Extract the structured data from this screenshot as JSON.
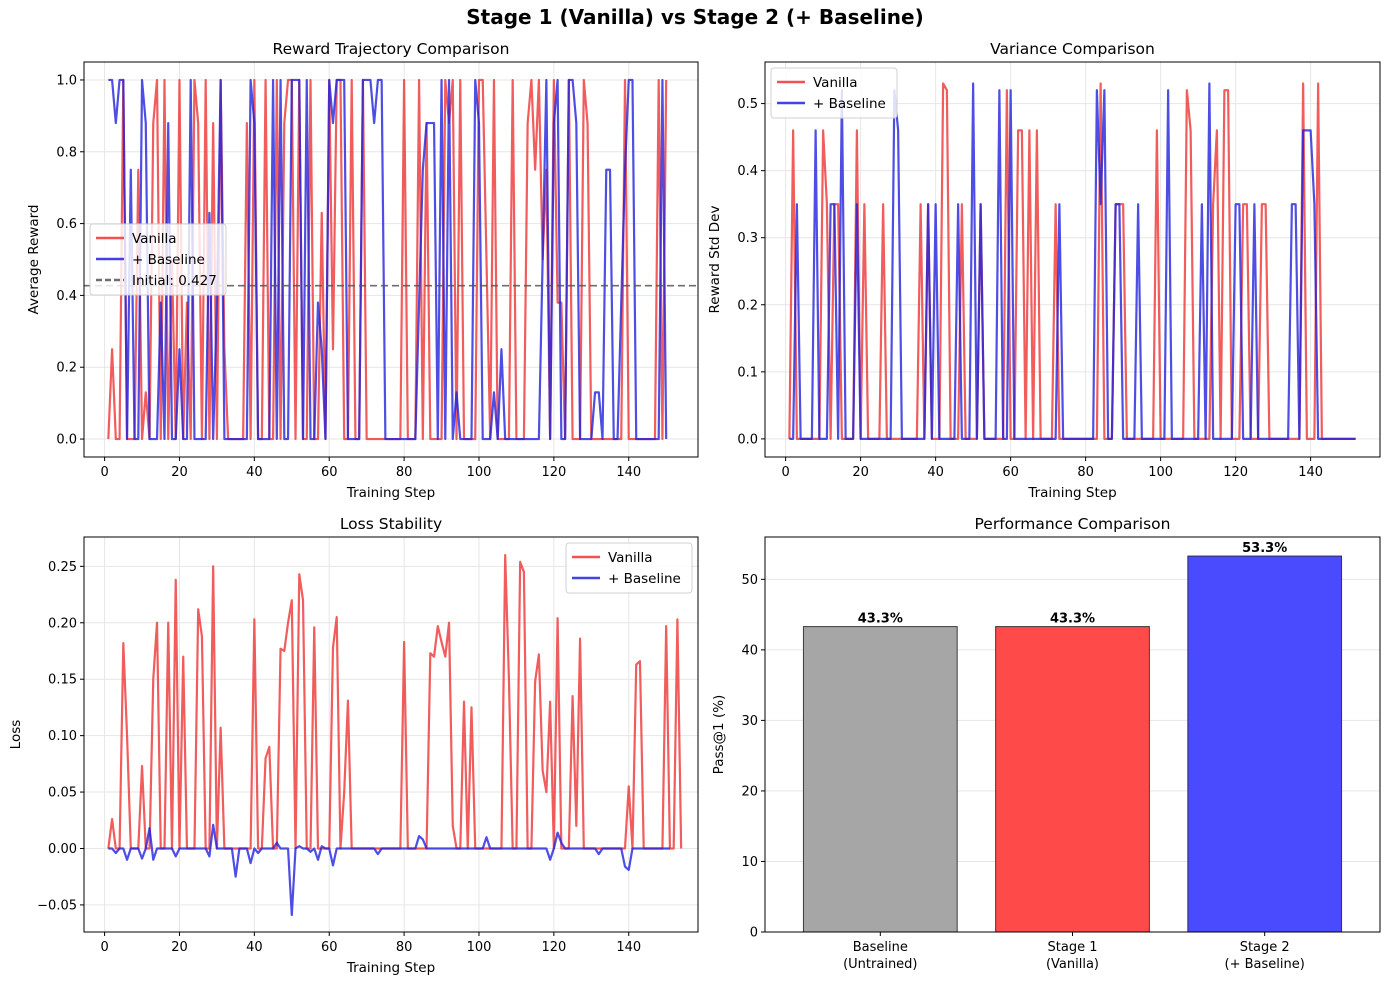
{
  "suptitle": "Stage 1 (Vanilla) vs Stage 2 (+ Baseline)",
  "colors": {
    "vanilla": "#ee3333",
    "baseline_line": "#2222dd",
    "initial_line": "#555555",
    "bar_gray": "#a6a6a6",
    "bar_red": "#ff4a4a",
    "bar_blue": "#4a4aff",
    "grid": "#e6e6e6"
  },
  "chart_data": [
    {
      "type": "line",
      "title": "Reward Trajectory Comparison",
      "xlabel": "Training Step",
      "ylabel": "Average Reward",
      "xlim": [
        -5.5,
        158.5
      ],
      "ylim": [
        -0.05,
        1.05
      ],
      "xticks": [
        0,
        20,
        40,
        60,
        80,
        100,
        120,
        140
      ],
      "yticks": [
        0.0,
        0.2,
        0.4,
        0.6,
        0.8,
        1.0
      ],
      "ytick_decimals": 1,
      "grid": true,
      "legend": "center-left",
      "hline": {
        "y": 0.427,
        "label": "Initial: 0.427"
      },
      "series": [
        {
          "name": "Vanilla",
          "x_start": 1,
          "values": [
            0.0,
            0.25,
            0.0,
            0.0,
            1.0,
            0.0,
            0.0,
            0.0,
            0.75,
            0.0,
            0.13,
            0.0,
            0.88,
            1.0,
            0.0,
            1.0,
            0.0,
            0.5,
            0.0,
            1.0,
            0.0,
            0.38,
            0.0,
            1.0,
            0.88,
            0.0,
            1.0,
            0.0,
            0.88,
            0.0,
            1.0,
            0.25,
            0.0,
            0.0,
            0.0,
            0.0,
            0.0,
            0.88,
            0.0,
            1.0,
            0.0,
            0.0,
            1.0,
            0.0,
            0.0,
            1.0,
            0.0,
            0.88,
            1.0,
            1.0,
            0.0,
            1.0,
            0.0,
            0.0,
            1.0,
            0.0,
            0.0,
            0.63,
            0.0,
            1.0,
            0.25,
            1.0,
            1.0,
            0.0,
            0.0,
            1.0,
            0.0,
            0.0,
            1.0,
            0.0,
            0.0,
            0.0,
            0.0,
            0.0,
            0.0,
            0.0,
            0.0,
            0.0,
            0.0,
            1.0,
            0.0,
            0.0,
            0.0,
            1.0,
            0.0,
            0.88,
            0.0,
            0.0,
            0.0,
            0.0,
            1.0,
            0.88,
            1.0,
            0.0,
            1.0,
            0.0,
            0.0,
            0.0,
            0.0,
            1.0,
            1.0,
            0.5,
            0.0,
            1.0,
            0.0,
            0.0,
            0.0,
            0.0,
            1.0,
            0.0,
            0.0,
            0.0,
            0.88,
            1.0,
            0.75,
            1.0,
            0.5,
            0.75,
            0.0,
            1.0,
            0.38,
            0.38,
            0.0,
            1.0,
            0.0,
            0.0,
            0.0,
            1.0,
            0.88,
            0.0,
            0.0,
            0.0,
            0.0,
            0.0,
            0.0,
            0.0,
            0.0,
            0.0,
            1.0,
            0.0,
            0.0,
            0.0,
            0.0,
            0.0,
            0.0,
            0.0,
            0.0,
            1.0,
            0.0,
            1.0
          ]
        },
        {
          "name": "+ Baseline",
          "x_start": 1,
          "values": [
            1.0,
            1.0,
            0.88,
            1.0,
            1.0,
            0.0,
            0.75,
            0.0,
            0.0,
            1.0,
            0.88,
            0.0,
            0.0,
            0.0,
            0.38,
            0.0,
            0.88,
            0.0,
            0.0,
            0.25,
            0.0,
            0.0,
            1.0,
            0.0,
            0.0,
            0.0,
            0.0,
            0.63,
            0.0,
            0.38,
            1.0,
            0.0,
            0.0,
            0.0,
            0.0,
            0.0,
            0.0,
            0.0,
            1.0,
            0.88,
            0.0,
            0.0,
            0.0,
            0.0,
            1.0,
            0.0,
            1.0,
            0.0,
            0.0,
            1.0,
            1.0,
            1.0,
            0.0,
            1.0,
            0.0,
            0.0,
            0.38,
            0.25,
            0.0,
            1.0,
            0.88,
            1.0,
            1.0,
            1.0,
            0.0,
            0.0,
            0.0,
            0.0,
            1.0,
            1.0,
            1.0,
            0.88,
            1.0,
            1.0,
            0.0,
            0.0,
            0.0,
            0.0,
            0.0,
            0.0,
            0.0,
            0.0,
            0.0,
            0.38,
            0.75,
            0.88,
            0.88,
            0.88,
            0.0,
            1.0,
            0.0,
            1.0,
            0.0,
            0.13,
            0.0,
            0.0,
            0.0,
            0.0,
            1.0,
            0.88,
            0.0,
            0.0,
            0.0,
            0.13,
            0.0,
            0.25,
            0.0,
            0.0,
            0.0,
            0.0,
            0.0,
            0.0,
            0.0,
            0.0,
            0.0,
            0.0,
            0.5,
            1.0,
            0.0,
            0.88,
            1.0,
            0.0,
            0.0,
            1.0,
            1.0,
            0.88,
            0.0,
            0.0,
            0.0,
            0.0,
            0.13,
            0.13,
            0.0,
            0.75,
            0.75,
            0.0,
            0.0,
            0.38,
            0.75,
            1.0,
            1.0,
            0.0,
            0.0,
            0.0,
            0.0,
            0.0,
            0.0,
            0.0,
            1.0,
            0.0
          ]
        }
      ]
    },
    {
      "type": "line",
      "title": "Variance Comparison",
      "xlabel": "Training Step",
      "ylabel": "Reward Std Dev",
      "xlim": [
        -5.5,
        158.5
      ],
      "ylim": [
        -0.027,
        0.562
      ],
      "xticks": [
        0,
        20,
        40,
        60,
        80,
        100,
        120,
        140
      ],
      "yticks": [
        0.0,
        0.1,
        0.2,
        0.3,
        0.4,
        0.5
      ],
      "ytick_decimals": 1,
      "grid": true,
      "legend": "top-left",
      "series": [
        {
          "name": "Vanilla",
          "x_start": 1,
          "values": [
            0.0,
            0.46,
            0.0,
            0.0,
            0.0,
            0.0,
            0.0,
            0.0,
            0.0,
            0.46,
            0.35,
            0.0,
            0.35,
            0.35,
            0.0,
            0.0,
            0.0,
            0.0,
            0.46,
            0.0,
            0.35,
            0.0,
            0.0,
            0.0,
            0.0,
            0.35,
            0.0,
            0.0,
            0.0,
            0.0,
            0.0,
            0.0,
            0.0,
            0.0,
            0.0,
            0.35,
            0.0,
            0.35,
            0.0,
            0.0,
            0.0,
            0.53,
            0.52,
            0.0,
            0.0,
            0.0,
            0.35,
            0.0,
            0.0,
            0.0,
            0.0,
            0.35,
            0.0,
            0.0,
            0.0,
            0.0,
            0.0,
            0.0,
            0.52,
            0.0,
            0.0,
            0.46,
            0.46,
            0.0,
            0.46,
            0.0,
            0.46,
            0.0,
            0.0,
            0.0,
            0.0,
            0.35,
            0.0,
            0.0,
            0.0,
            0.0,
            0.0,
            0.0,
            0.0,
            0.0,
            0.0,
            0.0,
            0.0,
            0.53,
            0.0,
            0.0,
            0.0,
            0.35,
            0.35,
            0.35,
            0.0,
            0.0,
            0.0,
            0.0,
            0.0,
            0.0,
            0.0,
            0.0,
            0.46,
            0.0,
            0.0,
            0.0,
            0.0,
            0.0,
            0.0,
            0.0,
            0.52,
            0.46,
            0.0,
            0.0,
            0.0,
            0.0,
            0.0,
            0.35,
            0.46,
            0.0,
            0.52,
            0.52,
            0.0,
            0.0,
            0.0,
            0.35,
            0.35,
            0.0,
            0.0,
            0.0,
            0.35,
            0.35,
            0.0,
            0.0,
            0.0,
            0.0,
            0.0,
            0.0,
            0.0,
            0.0,
            0.0,
            0.53,
            0.0,
            0.0,
            0.0,
            0.53,
            0.0,
            0.0,
            0.0,
            0.0,
            0.0,
            0.0,
            0.0,
            0.0,
            0.0,
            0.0
          ]
        },
        {
          "name": "+ Baseline",
          "x_start": 1,
          "values": [
            0.0,
            0.0,
            0.35,
            0.0,
            0.0,
            0.0,
            0.0,
            0.46,
            0.0,
            0.0,
            0.0,
            0.35,
            0.35,
            0.0,
            0.52,
            0.0,
            0.0,
            0.0,
            0.35,
            0.0,
            0.0,
            0.0,
            0.0,
            0.0,
            0.0,
            0.0,
            0.0,
            0.0,
            0.52,
            0.46,
            0.0,
            0.0,
            0.0,
            0.0,
            0.0,
            0.0,
            0.0,
            0.35,
            0.0,
            0.35,
            0.0,
            0.0,
            0.0,
            0.0,
            0.0,
            0.35,
            0.0,
            0.0,
            0.0,
            0.53,
            0.0,
            0.35,
            0.0,
            0.0,
            0.0,
            0.0,
            0.52,
            0.0,
            0.0,
            0.52,
            0.0,
            0.0,
            0.0,
            0.0,
            0.0,
            0.0,
            0.0,
            0.0,
            0.0,
            0.0,
            0.0,
            0.0,
            0.35,
            0.0,
            0.0,
            0.0,
            0.0,
            0.0,
            0.0,
            0.0,
            0.0,
            0.0,
            0.52,
            0.35,
            0.52,
            0.0,
            0.0,
            0.35,
            0.35,
            0.0,
            0.0,
            0.0,
            0.0,
            0.35,
            0.0,
            0.0,
            0.0,
            0.0,
            0.0,
            0.0,
            0.0,
            0.52,
            0.0,
            0.0,
            0.0,
            0.0,
            0.0,
            0.0,
            0.0,
            0.0,
            0.35,
            0.0,
            0.53,
            0.0,
            0.0,
            0.0,
            0.0,
            0.0,
            0.0,
            0.35,
            0.35,
            0.0,
            0.0,
            0.0,
            0.35,
            0.0,
            0.0,
            0.0,
            0.0,
            0.0,
            0.0,
            0.0,
            0.0,
            0.0,
            0.35,
            0.35,
            0.0,
            0.46,
            0.46,
            0.46,
            0.35,
            0.0,
            0.0,
            0.0,
            0.0,
            0.0,
            0.0,
            0.0,
            0.0,
            0.0,
            0.0,
            0.0
          ]
        }
      ]
    },
    {
      "type": "line",
      "title": "Loss Stability",
      "xlabel": "Training Step",
      "ylabel": "Loss",
      "xlim": [
        -5.5,
        158.5
      ],
      "ylim": [
        -0.074,
        0.276
      ],
      "xticks": [
        0,
        20,
        40,
        60,
        80,
        100,
        120,
        140
      ],
      "yticks": [
        -0.05,
        0.0,
        0.05,
        0.1,
        0.15,
        0.2,
        0.25
      ],
      "ytick_decimals": 2,
      "grid": true,
      "legend": "top-right",
      "series": [
        {
          "name": "Vanilla",
          "x_start": 1,
          "values": [
            0.0,
            0.026,
            0.0,
            0.0,
            0.182,
            0.1,
            0.0,
            0.0,
            0.0,
            0.073,
            0.0,
            0.0,
            0.15,
            0.2,
            0.0,
            0.0,
            0.2,
            0.0,
            0.238,
            0.0,
            0.17,
            0.0,
            0.0,
            0.0,
            0.212,
            0.188,
            0.0,
            0.0,
            0.25,
            0.0,
            0.107,
            0.0,
            0.0,
            0.0,
            0.0,
            0.0,
            0.0,
            0.0,
            0.0,
            0.203,
            0.0,
            0.0,
            0.08,
            0.09,
            0.0,
            0.0,
            0.177,
            0.175,
            0.2,
            0.22,
            0.0,
            0.243,
            0.22,
            0.0,
            0.0,
            0.196,
            0.0,
            0.0,
            0.0,
            0.0,
            0.178,
            0.205,
            0.0,
            0.05,
            0.131,
            0.0,
            0.0,
            0.0,
            0.0,
            0.0,
            0.0,
            0.0,
            0.0,
            0.0,
            0.0,
            0.0,
            0.0,
            0.0,
            0.0,
            0.183,
            0.0,
            0.0,
            0.0,
            0.0,
            0.0,
            0.0,
            0.173,
            0.17,
            0.197,
            0.183,
            0.17,
            0.2,
            0.02,
            0.0,
            0.0,
            0.13,
            0.0,
            0.125,
            0.0,
            0.0,
            0.0,
            0.0,
            0.0,
            0.0,
            0.0,
            0.0,
            0.26,
            0.15,
            0.0,
            0.0,
            0.254,
            0.245,
            0.0,
            0.0,
            0.148,
            0.172,
            0.069,
            0.05,
            0.13,
            0.0,
            0.204,
            0.0,
            0.0,
            0.0,
            0.135,
            0.02,
            0.186,
            0.0,
            0.0,
            0.0,
            0.0,
            0.0,
            0.0,
            0.0,
            0.0,
            0.0,
            0.0,
            0.0,
            0.0,
            0.055,
            0.0,
            0.163,
            0.166,
            0.0,
            0.0,
            0.0,
            0.0,
            0.0,
            0.0,
            0.197,
            0.0,
            0.0,
            0.203,
            0.0
          ]
        },
        {
          "name": "+ Baseline",
          "x_start": 1,
          "values": [
            0.0,
            0.0,
            -0.004,
            0.0,
            0.0,
            -0.01,
            0.0,
            0.0,
            0.0,
            -0.009,
            0.0,
            0.018,
            -0.01,
            0.0,
            0.0,
            0.0,
            0.0,
            0.0,
            -0.007,
            0.0,
            0.0,
            0.0,
            0.0,
            0.0,
            0.0,
            0.0,
            0.0,
            -0.007,
            0.021,
            0.0,
            0.0,
            0.0,
            0.0,
            0.0,
            -0.025,
            0.0,
            0.0,
            0.0,
            -0.013,
            0.0,
            -0.004,
            0.0,
            0.0,
            0.0,
            0.0,
            0.005,
            0.0,
            0.0,
            0.0,
            -0.059,
            0.0,
            0.002,
            0.0,
            0.0,
            -0.003,
            0.0,
            -0.01,
            0.002,
            0.0,
            0.0,
            -0.015,
            0.0,
            0.0,
            0.0,
            0.0,
            0.0,
            0.0,
            0.0,
            0.0,
            0.0,
            0.0,
            0.0,
            -0.005,
            0.0,
            0.0,
            0.0,
            0.0,
            0.0,
            0.0,
            0.0,
            0.0,
            0.0,
            0.0,
            0.011,
            0.008,
            0.0,
            0.0,
            0.0,
            0.0,
            0.0,
            0.0,
            0.0,
            0.0,
            0.0,
            0.0,
            0.0,
            0.0,
            0.0,
            0.0,
            0.0,
            0.0,
            0.01,
            0.0,
            0.0,
            0.0,
            0.0,
            0.0,
            0.0,
            0.0,
            0.0,
            0.0,
            0.0,
            0.0,
            0.0,
            0.0,
            0.0,
            0.0,
            0.0,
            -0.01,
            0.0,
            0.014,
            0.005,
            0.0,
            0.0,
            0.0,
            0.0,
            0.0,
            0.0,
            0.0,
            0.0,
            0.0,
            -0.005,
            0.0,
            0.0,
            0.0,
            0.0,
            0.0,
            0.0,
            -0.016,
            -0.019,
            0.0,
            0.0,
            0.0,
            0.0,
            0.0,
            0.0,
            0.0,
            0.0,
            0.0,
            0.0,
            0.0
          ]
        }
      ]
    },
    {
      "type": "bar",
      "title": "Performance Comparison",
      "xlabel": "",
      "ylabel": "Pass@1 (%)",
      "ylim": [
        0,
        56
      ],
      "yticks": [
        0,
        10,
        20,
        30,
        40,
        50
      ],
      "ytick_decimals": 0,
      "grid": true,
      "categories": [
        [
          "Baseline",
          "(Untrained)"
        ],
        [
          "Stage 1",
          "(Vanilla)"
        ],
        [
          "Stage 2",
          "(+ Baseline)"
        ]
      ],
      "values": [
        43.3,
        43.3,
        53.3
      ],
      "value_labels": [
        "43.3%",
        "43.3%",
        "53.3%"
      ],
      "bar_colors": [
        "#a6a6a6",
        "#ff4a4a",
        "#4a4aff"
      ]
    }
  ]
}
